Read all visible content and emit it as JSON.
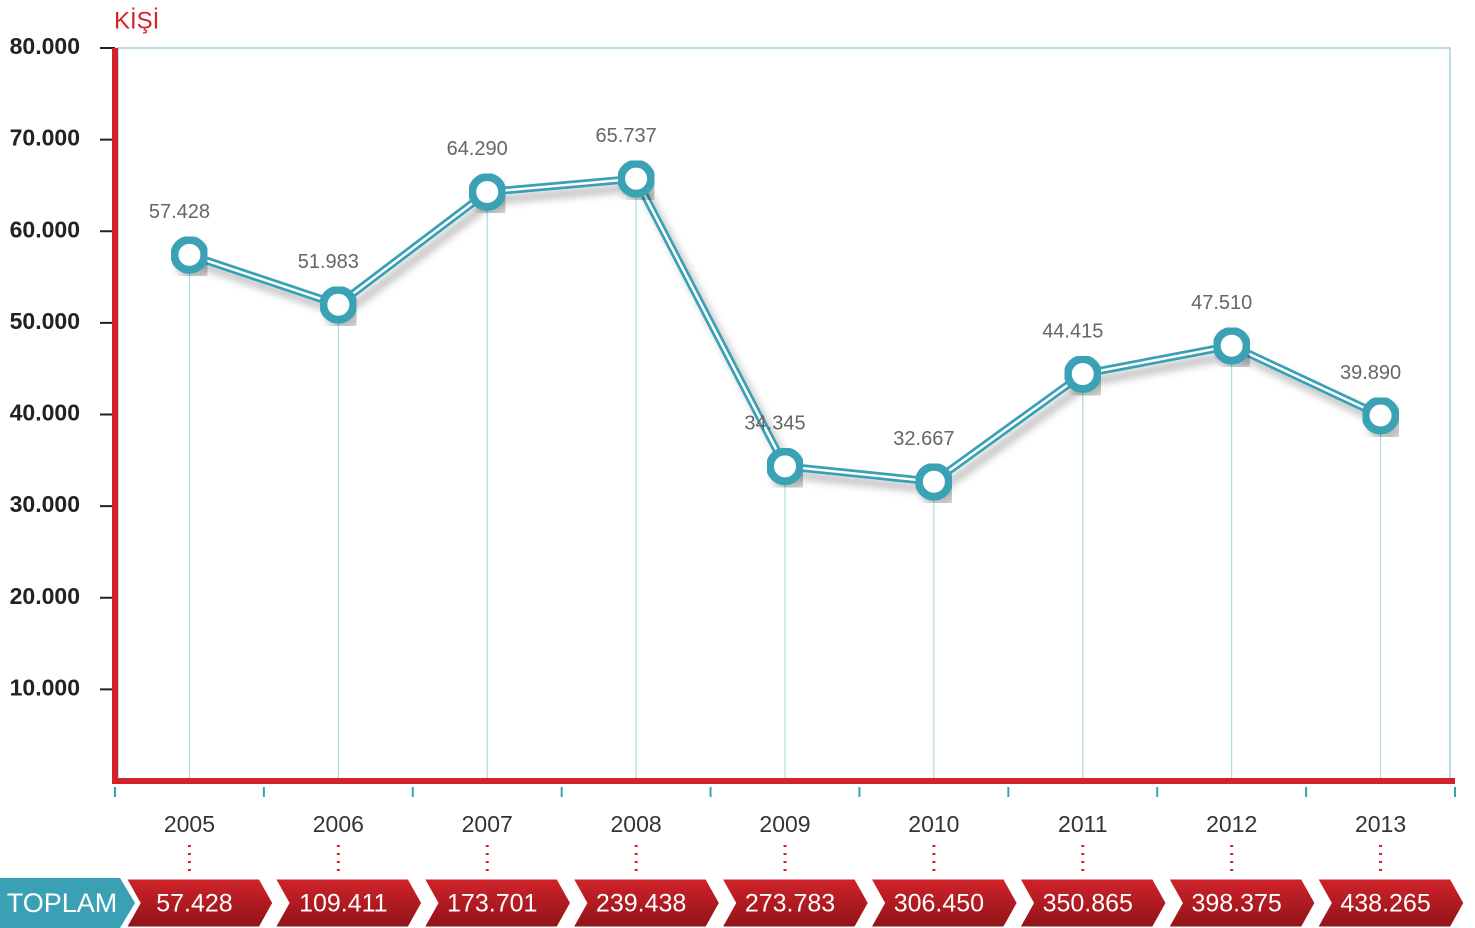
{
  "chart_data": {
    "type": "line",
    "y_label": "KİŞİ",
    "categories": [
      "2005",
      "2006",
      "2007",
      "2008",
      "2009",
      "2010",
      "2011",
      "2012",
      "2013"
    ],
    "series": [
      {
        "color": "#3aa1b5",
        "values": [
          57428,
          51983,
          64290,
          65737,
          34345,
          32667,
          44415,
          47510,
          39890
        ],
        "value_labels": [
          "57.428",
          "51.983",
          "64.290",
          "65.737",
          "34.345",
          "32.667",
          "44.415",
          "47.510",
          "39.890"
        ]
      }
    ],
    "ylim": [
      0,
      80000
    ],
    "yticks": [
      {
        "value": 10000,
        "label": "10.000"
      },
      {
        "value": 20000,
        "label": "20.000"
      },
      {
        "value": 30000,
        "label": "30.000"
      },
      {
        "value": 40000,
        "label": "40.000"
      },
      {
        "value": 50000,
        "label": "50.000"
      },
      {
        "value": 60000,
        "label": "60.000"
      },
      {
        "value": 70000,
        "label": "70.000"
      },
      {
        "value": 80000,
        "label": "80.000"
      }
    ],
    "totals_label": "TOPLAM",
    "totals": [
      "57.428",
      "109.411",
      "173.701",
      "239.438",
      "273.783",
      "306.450",
      "350.865",
      "398.375",
      "438.265"
    ]
  }
}
